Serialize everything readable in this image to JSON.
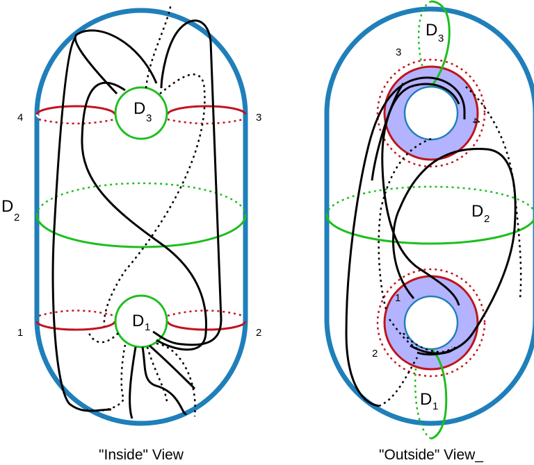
{
  "inside_view": {
    "caption": "\"Inside\" View",
    "disk_d3": {
      "letter": "D",
      "sub": "3"
    },
    "disk_d2": {
      "letter": "D",
      "sub": "2"
    },
    "disk_d1": {
      "letter": "D",
      "sub": "1"
    },
    "marks": {
      "top_left": "4",
      "top_right": "3",
      "bottom_left": "1",
      "bottom_right": "2"
    }
  },
  "outside_view": {
    "caption": "\"Outside\" View_",
    "disk_d3": {
      "letter": "D",
      "sub": "3"
    },
    "disk_d2": {
      "letter": "D",
      "sub": "2"
    },
    "disk_d1": {
      "letter": "D",
      "sub": "1"
    },
    "marks": {
      "top_outer": "3",
      "top_inner": "4",
      "bottom_inner": "1",
      "bottom_outer": "2"
    }
  },
  "colors": {
    "capsule": "#1f7fba",
    "red": "#c0141c",
    "green": "#1cbf1c",
    "curve": "#000000",
    "annulus_fill": "#b3b3ff"
  }
}
